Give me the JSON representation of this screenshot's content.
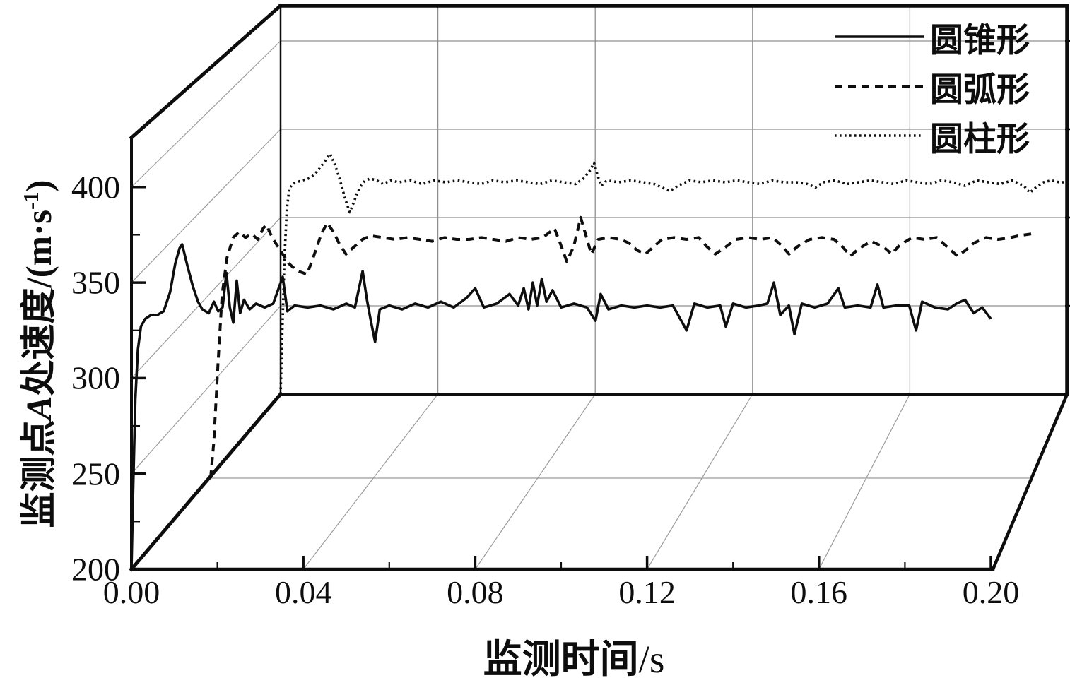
{
  "figure": {
    "background": "#ffffff",
    "line_color": "#0e0e0e",
    "grid_color": "#8f8f8f"
  },
  "axes": {
    "x": {
      "title_main": "监测时间",
      "title_unit": "/s",
      "tick_labels": [
        "0.00",
        "0.04",
        "0.08",
        "0.12",
        "0.16",
        "0.20"
      ],
      "tick_values": [
        0,
        0.04,
        0.08,
        0.12,
        0.16,
        0.2
      ]
    },
    "y": {
      "title_full": "监测点A处速度/(m·s⁻¹)",
      "title_parts": {
        "p1": "监测点",
        "italic": "A",
        "p2": "处速度/(m·s",
        "sup": "-1",
        "p3": ")"
      },
      "tick_labels": [
        "200",
        "250",
        "300",
        "350",
        "400"
      ],
      "tick_values": [
        200,
        250,
        300,
        350,
        400
      ]
    }
  },
  "legend": [
    {
      "label": "圆锥形",
      "style": "solid"
    },
    {
      "label": "圆弧形",
      "style": "dashed"
    },
    {
      "label": "圆柱形",
      "style": "dotted"
    }
  ],
  "chart_data": {
    "type": "line",
    "projection": "3d-waterfall-perspective",
    "xlabel": "监测时间/s",
    "ylabel": "监测点A处速度/(m·s⁻¹)",
    "xlim": [
      0,
      0.2
    ],
    "ylim": [
      200,
      425
    ],
    "x_ticks": [
      0,
      0.04,
      0.08,
      0.12,
      0.16,
      0.2
    ],
    "x_tick_labels": [
      "0.00",
      "0.04",
      "0.08",
      "0.12",
      "0.16",
      "0.20"
    ],
    "y_ticks": [
      200,
      250,
      300,
      350,
      400
    ],
    "grid": true,
    "legend_position": "top-right",
    "series": [
      {
        "name": "圆锥形",
        "line_style": "solid",
        "depth": "front",
        "steady_value_mps": 338,
        "peak_value_mps": 370,
        "points": [
          [
            0,
            200
          ],
          [
            0.0004,
            242
          ],
          [
            0.0009,
            289
          ],
          [
            0.0015,
            315
          ],
          [
            0.0022,
            327
          ],
          [
            0.0032,
            331
          ],
          [
            0.0045,
            333
          ],
          [
            0.006,
            333
          ],
          [
            0.0075,
            335
          ],
          [
            0.009,
            345
          ],
          [
            0.0102,
            360
          ],
          [
            0.0112,
            368
          ],
          [
            0.0118,
            370
          ],
          [
            0.013,
            359
          ],
          [
            0.0143,
            348
          ],
          [
            0.0155,
            340
          ],
          [
            0.0165,
            336
          ],
          [
            0.018,
            334
          ],
          [
            0.0192,
            340
          ],
          [
            0.0202,
            335
          ],
          [
            0.0212,
            337
          ],
          [
            0.0221,
            355
          ],
          [
            0.0229,
            337
          ],
          [
            0.0237,
            329
          ],
          [
            0.0245,
            351
          ],
          [
            0.0253,
            334
          ],
          [
            0.0262,
            341
          ],
          [
            0.0275,
            336
          ],
          [
            0.029,
            339
          ],
          [
            0.031,
            337
          ],
          [
            0.033,
            339
          ],
          [
            0.0352,
            353
          ],
          [
            0.0363,
            335
          ],
          [
            0.038,
            338
          ],
          [
            0.041,
            337
          ],
          [
            0.044,
            338
          ],
          [
            0.047,
            336
          ],
          [
            0.05,
            339
          ],
          [
            0.052,
            337
          ],
          [
            0.0538,
            356
          ],
          [
            0.0548,
            341
          ],
          [
            0.0557,
            330
          ],
          [
            0.0567,
            319
          ],
          [
            0.0578,
            336
          ],
          [
            0.06,
            338
          ],
          [
            0.063,
            336
          ],
          [
            0.066,
            339
          ],
          [
            0.069,
            337
          ],
          [
            0.072,
            340
          ],
          [
            0.075,
            337
          ],
          [
            0.078,
            342
          ],
          [
            0.08,
            347
          ],
          [
            0.082,
            337
          ],
          [
            0.085,
            339
          ],
          [
            0.088,
            344
          ],
          [
            0.09,
            338
          ],
          [
            0.0913,
            347
          ],
          [
            0.0924,
            336
          ],
          [
            0.0934,
            350
          ],
          [
            0.0944,
            338
          ],
          [
            0.0955,
            352
          ],
          [
            0.0966,
            340
          ],
          [
            0.098,
            346
          ],
          [
            0.1,
            337
          ],
          [
            0.103,
            339
          ],
          [
            0.106,
            337
          ],
          [
            0.108,
            330
          ],
          [
            0.1092,
            344
          ],
          [
            0.111,
            336
          ],
          [
            0.114,
            338
          ],
          [
            0.117,
            337
          ],
          [
            0.12,
            338
          ],
          [
            0.123,
            337
          ],
          [
            0.126,
            338
          ],
          [
            0.1292,
            325
          ],
          [
            0.131,
            339
          ],
          [
            0.134,
            337
          ],
          [
            0.137,
            338
          ],
          [
            0.1383,
            327
          ],
          [
            0.14,
            339
          ],
          [
            0.143,
            337
          ],
          [
            0.146,
            338
          ],
          [
            0.148,
            339
          ],
          [
            0.1495,
            350
          ],
          [
            0.151,
            333
          ],
          [
            0.153,
            338
          ],
          [
            0.1543,
            323
          ],
          [
            0.156,
            339
          ],
          [
            0.159,
            337
          ],
          [
            0.162,
            339
          ],
          [
            0.1645,
            347
          ],
          [
            0.166,
            337
          ],
          [
            0.169,
            338
          ],
          [
            0.172,
            337
          ],
          [
            0.1736,
            349
          ],
          [
            0.175,
            337
          ],
          [
            0.178,
            338
          ],
          [
            0.181,
            338
          ],
          [
            0.1826,
            325
          ],
          [
            0.184,
            340
          ],
          [
            0.187,
            337
          ],
          [
            0.19,
            336
          ],
          [
            0.192,
            339
          ],
          [
            0.194,
            341
          ],
          [
            0.196,
            334
          ],
          [
            0.198,
            337
          ],
          [
            0.2,
            331
          ]
        ]
      },
      {
        "name": "圆弧形",
        "line_style": "dashed",
        "depth": "middle",
        "steady_value_mps": 330,
        "points": [
          [
            0,
            200
          ],
          [
            0.0008,
            220
          ],
          [
            0.0018,
            262
          ],
          [
            0.0028,
            300
          ],
          [
            0.004,
            320
          ],
          [
            0.0055,
            331
          ],
          [
            0.007,
            334
          ],
          [
            0.0085,
            331
          ],
          [
            0.01,
            333
          ],
          [
            0.0115,
            330
          ],
          [
            0.0128,
            336
          ],
          [
            0.0136,
            338
          ],
          [
            0.015,
            331
          ],
          [
            0.017,
            324
          ],
          [
            0.019,
            317
          ],
          [
            0.021,
            313
          ],
          [
            0.0235,
            311
          ],
          [
            0.025,
            320
          ],
          [
            0.027,
            333
          ],
          [
            0.0284,
            339
          ],
          [
            0.03,
            334
          ],
          [
            0.0315,
            327
          ],
          [
            0.033,
            322
          ],
          [
            0.035,
            326
          ],
          [
            0.037,
            330
          ],
          [
            0.039,
            332
          ],
          [
            0.042,
            331
          ],
          [
            0.045,
            330
          ],
          [
            0.048,
            331
          ],
          [
            0.051,
            330
          ],
          [
            0.054,
            329
          ],
          [
            0.057,
            331
          ],
          [
            0.06,
            330
          ],
          [
            0.063,
            330
          ],
          [
            0.066,
            331
          ],
          [
            0.069,
            330
          ],
          [
            0.072,
            329
          ],
          [
            0.075,
            331
          ],
          [
            0.078,
            330
          ],
          [
            0.081,
            331
          ],
          [
            0.0838,
            336
          ],
          [
            0.0852,
            328
          ],
          [
            0.0868,
            318
          ],
          [
            0.0885,
            326
          ],
          [
            0.0902,
            342
          ],
          [
            0.0915,
            332
          ],
          [
            0.0928,
            322
          ],
          [
            0.0945,
            330
          ],
          [
            0.097,
            331
          ],
          [
            0.1,
            330
          ],
          [
            0.102,
            328
          ],
          [
            0.104,
            324
          ],
          [
            0.106,
            322
          ],
          [
            0.108,
            326
          ],
          [
            0.11,
            330
          ],
          [
            0.113,
            331
          ],
          [
            0.116,
            330
          ],
          [
            0.119,
            331
          ],
          [
            0.121,
            326
          ],
          [
            0.123,
            322
          ],
          [
            0.125,
            325
          ],
          [
            0.128,
            330
          ],
          [
            0.131,
            331
          ],
          [
            0.134,
            330
          ],
          [
            0.137,
            331
          ],
          [
            0.139,
            327
          ],
          [
            0.141,
            322
          ],
          [
            0.143,
            326
          ],
          [
            0.146,
            330
          ],
          [
            0.149,
            331
          ],
          [
            0.152,
            330
          ],
          [
            0.154,
            326
          ],
          [
            0.156,
            321
          ],
          [
            0.158,
            325
          ],
          [
            0.161,
            329
          ],
          [
            0.164,
            326
          ],
          [
            0.166,
            322
          ],
          [
            0.168,
            327
          ],
          [
            0.171,
            331
          ],
          [
            0.174,
            330
          ],
          [
            0.177,
            331
          ],
          [
            0.18,
            325
          ],
          [
            0.182,
            321
          ],
          [
            0.184,
            324
          ],
          [
            0.186,
            328
          ],
          [
            0.189,
            331
          ],
          [
            0.192,
            330
          ],
          [
            0.195,
            331
          ],
          [
            0.197,
            332
          ],
          [
            0.2,
            333
          ]
        ]
      },
      {
        "name": "圆柱形",
        "line_style": "dotted",
        "depth": "back",
        "steady_value_mps": 320,
        "points": [
          [
            0,
            200
          ],
          [
            0.0005,
            240
          ],
          [
            0.001,
            278
          ],
          [
            0.0016,
            305
          ],
          [
            0.0022,
            316
          ],
          [
            0.003,
            319
          ],
          [
            0.004,
            320
          ],
          [
            0.0055,
            321
          ],
          [
            0.007,
            322
          ],
          [
            0.0085,
            324
          ],
          [
            0.01,
            328
          ],
          [
            0.0113,
            332
          ],
          [
            0.0126,
            336
          ],
          [
            0.0138,
            330
          ],
          [
            0.015,
            322
          ],
          [
            0.016,
            314
          ],
          [
            0.0168,
            308
          ],
          [
            0.0176,
            303
          ],
          [
            0.0185,
            308
          ],
          [
            0.0195,
            314
          ],
          [
            0.0205,
            318
          ],
          [
            0.0215,
            321
          ],
          [
            0.0228,
            322
          ],
          [
            0.0245,
            321
          ],
          [
            0.026,
            319
          ],
          [
            0.028,
            321
          ],
          [
            0.03,
            320
          ],
          [
            0.033,
            321
          ],
          [
            0.036,
            319
          ],
          [
            0.039,
            321
          ],
          [
            0.042,
            320
          ],
          [
            0.045,
            321
          ],
          [
            0.048,
            320
          ],
          [
            0.051,
            319
          ],
          [
            0.054,
            321
          ],
          [
            0.057,
            320
          ],
          [
            0.06,
            321
          ],
          [
            0.063,
            320
          ],
          [
            0.066,
            319
          ],
          [
            0.069,
            321
          ],
          [
            0.072,
            320
          ],
          [
            0.075,
            319
          ],
          [
            0.077,
            322
          ],
          [
            0.0788,
            327
          ],
          [
            0.0797,
            331
          ],
          [
            0.0806,
            324
          ],
          [
            0.0815,
            318
          ],
          [
            0.083,
            321
          ],
          [
            0.086,
            320
          ],
          [
            0.089,
            321
          ],
          [
            0.092,
            320
          ],
          [
            0.095,
            319
          ],
          [
            0.097,
            317
          ],
          [
            0.099,
            315
          ],
          [
            0.101,
            318
          ],
          [
            0.104,
            321
          ],
          [
            0.107,
            320
          ],
          [
            0.11,
            321
          ],
          [
            0.113,
            320
          ],
          [
            0.116,
            321
          ],
          [
            0.119,
            320
          ],
          [
            0.122,
            319
          ],
          [
            0.125,
            321
          ],
          [
            0.128,
            320
          ],
          [
            0.131,
            320
          ],
          [
            0.134,
            319
          ],
          [
            0.136,
            317
          ],
          [
            0.138,
            320
          ],
          [
            0.141,
            321
          ],
          [
            0.144,
            319
          ],
          [
            0.147,
            320
          ],
          [
            0.15,
            321
          ],
          [
            0.153,
            320
          ],
          [
            0.156,
            319
          ],
          [
            0.159,
            321
          ],
          [
            0.162,
            320
          ],
          [
            0.165,
            319
          ],
          [
            0.168,
            321
          ],
          [
            0.171,
            320
          ],
          [
            0.174,
            318
          ],
          [
            0.177,
            321
          ],
          [
            0.18,
            320
          ],
          [
            0.183,
            319
          ],
          [
            0.186,
            321
          ],
          [
            0.189,
            318
          ],
          [
            0.1905,
            314
          ],
          [
            0.192,
            317
          ],
          [
            0.194,
            320
          ],
          [
            0.196,
            321
          ],
          [
            0.198,
            320
          ],
          [
            0.2,
            320
          ]
        ]
      }
    ]
  }
}
